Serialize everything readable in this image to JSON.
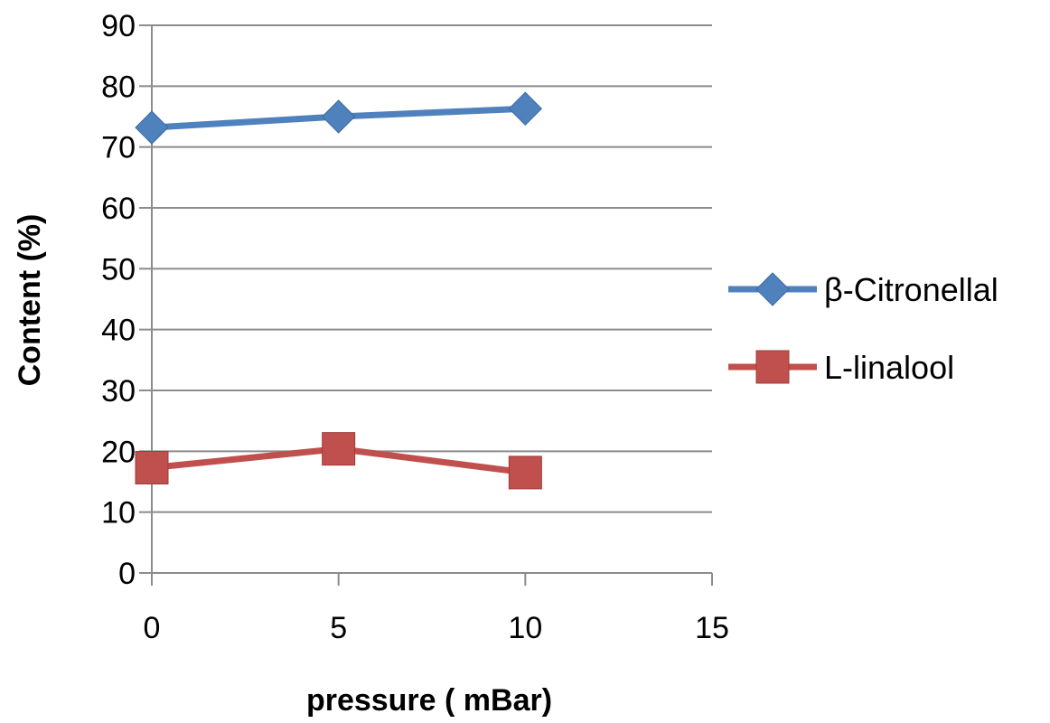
{
  "chart_data": {
    "type": "line",
    "xlabel": "pressure ( mBar)",
    "ylabel": "Content (%)",
    "xlim": [
      0,
      15
    ],
    "ylim": [
      0,
      90
    ],
    "xticks": [
      0,
      5,
      10,
      15
    ],
    "yticks": [
      0,
      10,
      20,
      30,
      40,
      50,
      60,
      70,
      80,
      90
    ],
    "grid": "horizontal",
    "legend_position": "right",
    "series": [
      {
        "name": "β-Citronellal",
        "color": "#4f81bd",
        "marker": "diamond",
        "points": [
          {
            "x": 0,
            "y": 73.2
          },
          {
            "x": 5,
            "y": 75.0
          },
          {
            "x": 10,
            "y": 76.3
          }
        ]
      },
      {
        "name": "L-linalool",
        "color": "#c0504d",
        "marker": "square",
        "points": [
          {
            "x": 0,
            "y": 17.3
          },
          {
            "x": 5,
            "y": 20.4
          },
          {
            "x": 10,
            "y": 16.5
          }
        ]
      }
    ]
  }
}
